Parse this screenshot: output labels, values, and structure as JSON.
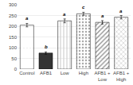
{
  "chart_data": {
    "type": "bar",
    "categories": [
      "Control",
      "AFB1",
      "Low",
      "High",
      "AFB1 +\nLow",
      "AFB1 +\nHigh"
    ],
    "values": [
      205,
      75,
      225,
      258,
      218,
      242
    ],
    "error_bars": [
      8,
      5,
      9,
      7,
      8,
      8
    ],
    "annotations": [
      "a",
      "b",
      "a",
      "c",
      "a",
      "a"
    ],
    "colors": [
      "#ffffff",
      "#333333",
      "#d0d0d0",
      "#aaaaaa",
      "#888888",
      "#cccccc"
    ],
    "ylim": [
      0,
      300
    ],
    "yticks": [
      0,
      50,
      100,
      150,
      200,
      250,
      300
    ],
    "grid": true
  }
}
